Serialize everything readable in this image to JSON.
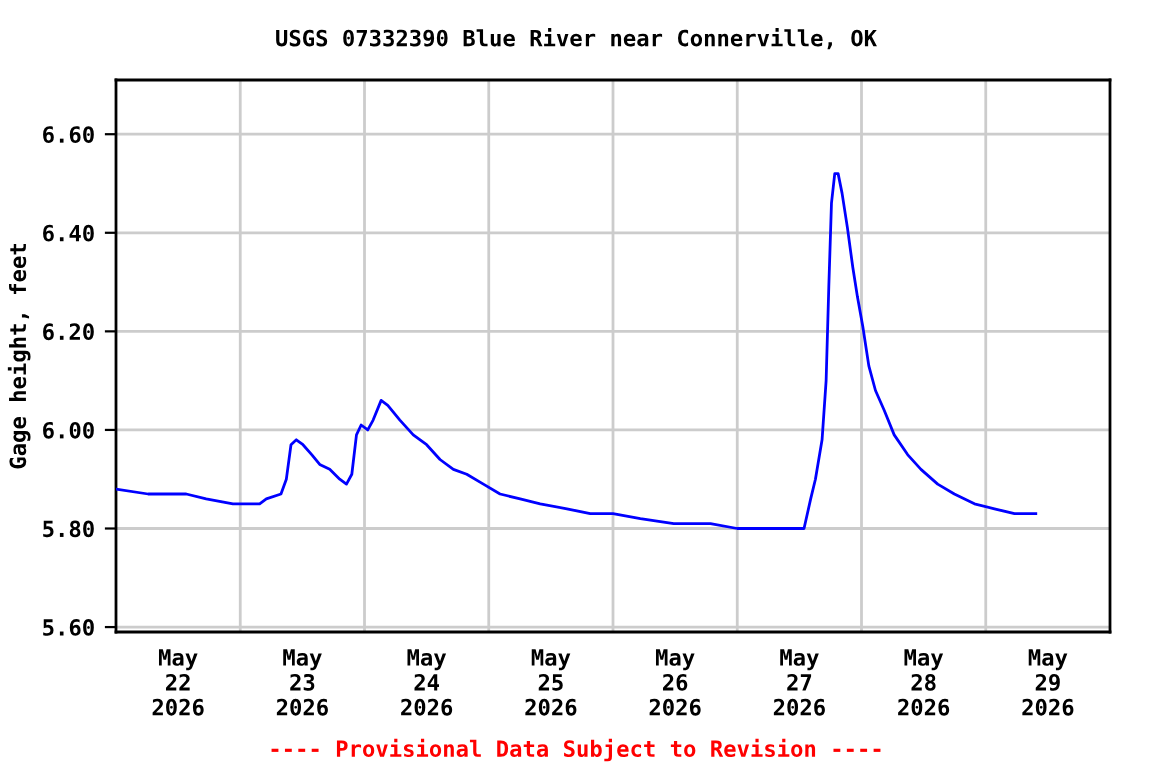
{
  "chart_data": {
    "type": "line",
    "title": "USGS 07332390 Blue River near Connerville, OK",
    "ylabel": "Gage height, feet",
    "annotations": [
      "---- Provisional Data Subject to Revision ----"
    ],
    "x": [
      "2026-05-21T12:00",
      "2026-05-21T18:12",
      "2026-05-22T01:34",
      "2026-05-22T05:25",
      "2026-05-22T10:35",
      "2026-05-22T15:45",
      "2026-05-22T17:02",
      "2026-05-22T19:52",
      "2026-05-22T20:54",
      "2026-05-22T21:48",
      "2026-05-22T22:50",
      "2026-05-23T00:07",
      "2026-05-23T01:48",
      "2026-05-23T03:21",
      "2026-05-23T05:17",
      "2026-05-23T07:13",
      "2026-05-23T08:31",
      "2026-05-23T09:33",
      "2026-05-23T10:27",
      "2026-05-23T11:21",
      "2026-05-23T12:38",
      "2026-05-23T13:40",
      "2026-05-23T15:13",
      "2026-05-23T16:30",
      "2026-05-23T18:50",
      "2026-05-23T21:25",
      "2026-05-24T00:00",
      "2026-05-24T02:35",
      "2026-05-24T05:10",
      "2026-05-24T07:45",
      "2026-05-24T10:58",
      "2026-05-24T14:11",
      "2026-05-24T18:04",
      "2026-05-24T21:56",
      "2026-05-25T03:06",
      "2026-05-25T07:36",
      "2026-05-25T12:00",
      "2026-05-25T17:17",
      "2026-05-25T23:44",
      "2026-05-26T06:50",
      "2026-05-26T12:00",
      "2026-05-26T19:06",
      "2026-05-27T00:54",
      "2026-05-27T02:11",
      "2026-05-27T03:06",
      "2026-05-27T04:23",
      "2026-05-27T05:10",
      "2026-05-27T05:41",
      "2026-05-27T06:12",
      "2026-05-27T06:50",
      "2026-05-27T07:29",
      "2026-05-27T08:15",
      "2026-05-27T09:17",
      "2026-05-27T10:19",
      "2026-05-27T11:13",
      "2026-05-27T12:15",
      "2026-05-27T13:25",
      "2026-05-27T14:42",
      "2026-05-27T16:23",
      "2026-05-27T18:19",
      "2026-05-27T20:54",
      "2026-05-27T23:29",
      "2026-05-28T02:43",
      "2026-05-28T05:56",
      "2026-05-28T09:49",
      "2026-05-28T13:41",
      "2026-05-28T17:33",
      "2026-05-28T21:40"
    ],
    "series": [
      {
        "color": "#0000ff",
        "values": [
          5.88,
          5.87,
          5.87,
          5.86,
          5.85,
          5.85,
          5.86,
          5.87,
          5.9,
          5.97,
          5.98,
          5.97,
          5.95,
          5.93,
          5.92,
          5.9,
          5.89,
          5.91,
          5.99,
          6.01,
          6.0,
          6.02,
          6.06,
          6.05,
          6.02,
          5.99,
          5.97,
          5.94,
          5.92,
          5.91,
          5.89,
          5.87,
          5.86,
          5.85,
          5.84,
          5.83,
          5.83,
          5.82,
          5.81,
          5.81,
          5.8,
          5.8,
          5.8,
          5.86,
          5.9,
          5.98,
          6.1,
          6.29,
          6.46,
          6.52,
          6.52,
          6.48,
          6.41,
          6.33,
          6.27,
          6.21,
          6.13,
          6.08,
          6.04,
          5.99,
          5.95,
          5.92,
          5.89,
          5.87,
          5.85,
          5.84,
          5.83,
          5.83
        ]
      }
    ],
    "xlim": [
      "2026-05-21T12:00",
      "2026-05-29T12:00"
    ],
    "xticks": [
      {
        "value": "2026-05-22T00:00",
        "label": "May\n22\n2026"
      },
      {
        "value": "2026-05-23T00:00",
        "label": "May\n23\n2026"
      },
      {
        "value": "2026-05-24T00:00",
        "label": "May\n24\n2026"
      },
      {
        "value": "2026-05-25T00:00",
        "label": "May\n25\n2026"
      },
      {
        "value": "2026-05-26T00:00",
        "label": "May\n26\n2026"
      },
      {
        "value": "2026-05-27T00:00",
        "label": "May\n27\n2026"
      },
      {
        "value": "2026-05-28T00:00",
        "label": "May\n28\n2026"
      },
      {
        "value": "2026-05-29T00:00",
        "label": "May\n29\n2026"
      },
      {
        "value": "2026-05-22T12:00",
        "label": null
      },
      {
        "value": "2026-05-23T12:00",
        "label": null
      },
      {
        "value": "2026-05-24T12:00",
        "label": null
      },
      {
        "value": "2026-05-25T12:00",
        "label": null
      },
      {
        "value": "2026-05-26T12:00",
        "label": null
      },
      {
        "value": "2026-05-27T12:00",
        "label": null
      },
      {
        "value": "2026-05-28T12:00",
        "label": null
      }
    ],
    "ylim": [
      5.59,
      6.71
    ],
    "yticks": [
      {
        "value": 5.6,
        "label": "5.60"
      },
      {
        "value": 5.8,
        "label": "5.80"
      },
      {
        "value": 6.0,
        "label": "6.00"
      },
      {
        "value": 6.2,
        "label": "6.20"
      },
      {
        "value": 6.4,
        "label": "6.40"
      },
      {
        "value": 6.6,
        "label": "6.60"
      }
    ],
    "grid": true
  }
}
